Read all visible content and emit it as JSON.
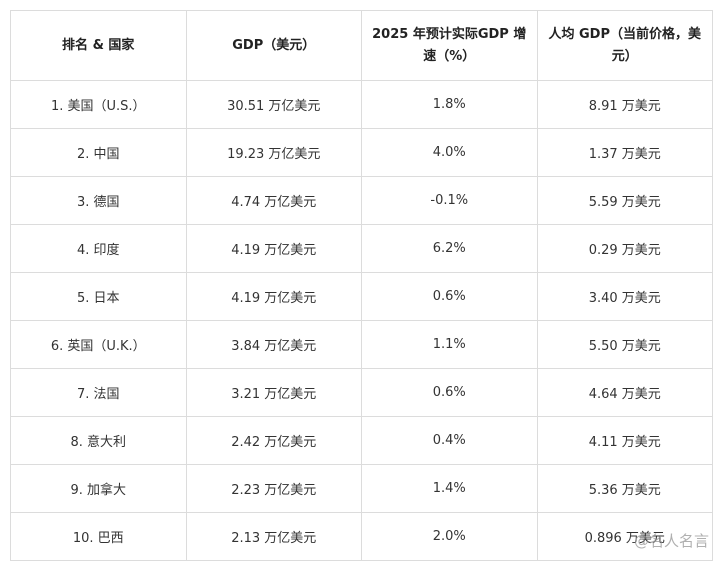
{
  "table": {
    "header": [
      "排名 & 国家",
      "GDP（美元）",
      "2025 年预计实际GDP 增速（%）",
      "人均 GDP（当前价格，美元）"
    ],
    "rows": [
      [
        "1. 美国（U.S.）",
        "30.51 万亿美元",
        "1.8%",
        "8.91 万美元"
      ],
      [
        "2. 中国",
        "19.23 万亿美元",
        "4.0%",
        "1.37 万美元"
      ],
      [
        "3. 德国",
        "4.74 万亿美元",
        "-0.1%",
        "5.59 万美元"
      ],
      [
        "4. 印度",
        "4.19 万亿美元",
        "6.2%",
        "0.29 万美元"
      ],
      [
        "5. 日本",
        "4.19 万亿美元",
        "0.6%",
        "3.40 万美元"
      ],
      [
        "6. 英国（U.K.）",
        "3.84 万亿美元",
        "1.1%",
        "5.50 万美元"
      ],
      [
        "7. 法国",
        "3.21 万亿美元",
        "0.6%",
        "4.64 万美元"
      ],
      [
        "8. 意大利",
        "2.42 万亿美元",
        "0.4%",
        "4.11 万美元"
      ],
      [
        "9. 加拿大",
        "2.23 万亿美元",
        "1.4%",
        "5.36 万美元"
      ],
      [
        "10. 巴西",
        "2.13 万亿美元",
        "2.0%",
        "0.896 万美元"
      ]
    ]
  },
  "watermark": "@名人名言"
}
